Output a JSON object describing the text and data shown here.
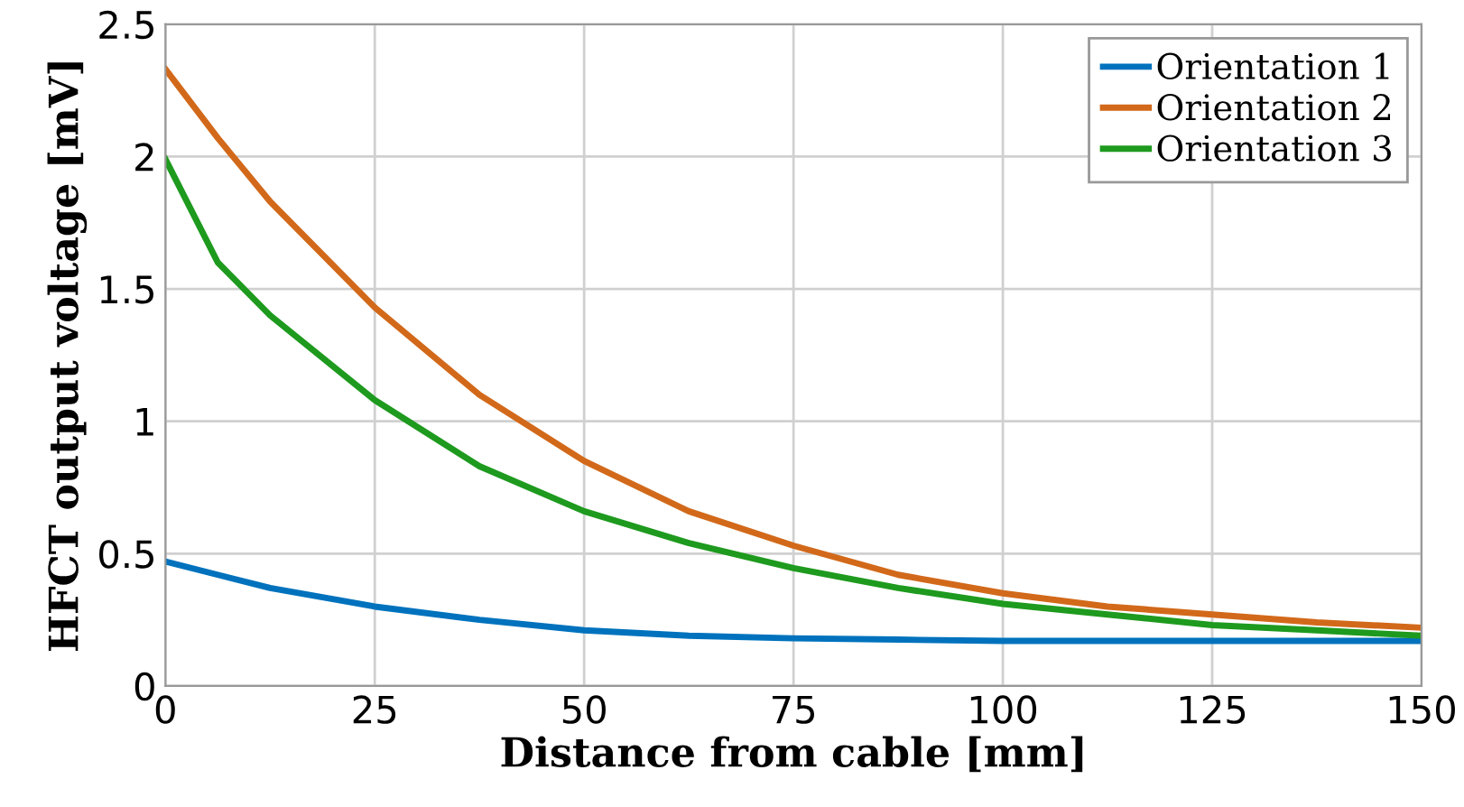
{
  "chart_data": {
    "type": "line",
    "xlabel": "Distance from cable [mm]",
    "ylabel": "HFCT output voltage [mV]",
    "xlim": [
      0,
      150
    ],
    "ylim": [
      0,
      2.5
    ],
    "xticks": [
      0,
      25,
      50,
      75,
      100,
      125,
      150
    ],
    "yticks": [
      0,
      0.5,
      1,
      1.5,
      2,
      2.5
    ],
    "x": [
      0,
      6.25,
      12.5,
      25,
      37.5,
      50,
      62.5,
      75,
      87.5,
      100,
      112.5,
      125,
      137.5,
      150
    ],
    "grid": true,
    "legend": "top right",
    "line_style": "solid",
    "marker": "none",
    "series": [
      {
        "name": "Orientation 1",
        "color": "#0072bd",
        "values": [
          0.47,
          0.42,
          0.37,
          0.3,
          0.25,
          0.21,
          0.19,
          0.18,
          0.175,
          0.17,
          0.17,
          0.17,
          0.17,
          0.17
        ]
      },
      {
        "name": "Orientation 2",
        "color": "#d2691a",
        "values": [
          2.33,
          2.07,
          1.83,
          1.43,
          1.1,
          0.85,
          0.66,
          0.53,
          0.42,
          0.35,
          0.3,
          0.27,
          0.24,
          0.22
        ]
      },
      {
        "name": "Orientation 3",
        "color": "#1e9a1e",
        "values": [
          1.99,
          1.6,
          1.4,
          1.08,
          0.83,
          0.66,
          0.54,
          0.445,
          0.37,
          0.31,
          0.27,
          0.23,
          0.21,
          0.19
        ]
      }
    ]
  }
}
